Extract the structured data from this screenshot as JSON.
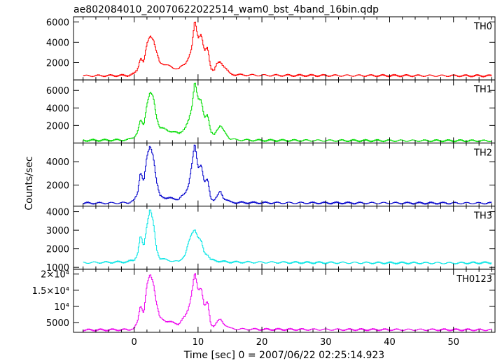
{
  "chart_data": {
    "type": "line",
    "title": "ae802084010_20070622022514_wam0_bst_4band_16bin.qdp",
    "xlabel": "Time [sec] 0 = 2007/06/22 02:25:14.923",
    "ylabel": "Counts/sec",
    "xlim": [
      -9.5,
      56.5
    ],
    "x_ticks": [
      0,
      10,
      20,
      30,
      40,
      50
    ],
    "grid": false,
    "legend": "panel labels top-right",
    "panels": [
      {
        "name": "TH0",
        "color": "#ff0000",
        "ylim": [
          300,
          6500
        ],
        "y_ticks": [
          2000,
          4000,
          6000
        ],
        "y_tick_labels": [
          "2000",
          "4000",
          "6000"
        ],
        "points": [
          [
            -8,
            700
          ],
          [
            -4,
            720
          ],
          [
            -1,
            740
          ],
          [
            0,
            900
          ],
          [
            0.5,
            1300
          ],
          [
            1,
            2500
          ],
          [
            1.5,
            2000
          ],
          [
            2,
            3800
          ],
          [
            2.5,
            4700
          ],
          [
            3,
            4300
          ],
          [
            3.5,
            3000
          ],
          [
            4,
            2000
          ],
          [
            5,
            1800
          ],
          [
            6,
            1500
          ],
          [
            7,
            1400
          ],
          [
            8,
            1900
          ],
          [
            8.5,
            2500
          ],
          [
            9,
            3300
          ],
          [
            9.5,
            6200
          ],
          [
            10,
            4500
          ],
          [
            10.5,
            4800
          ],
          [
            11,
            3100
          ],
          [
            11.5,
            3500
          ],
          [
            12,
            1500
          ],
          [
            12.5,
            1200
          ],
          [
            13,
            1900
          ],
          [
            13.5,
            2100
          ],
          [
            14,
            1700
          ],
          [
            15,
            900
          ],
          [
            16,
            800
          ],
          [
            20,
            750
          ],
          [
            30,
            730
          ],
          [
            40,
            720
          ],
          [
            50,
            710
          ],
          [
            56,
            700
          ]
        ]
      },
      {
        "name": "TH1",
        "color": "#00dd00",
        "ylim": [
          0,
          7200
        ],
        "y_ticks": [
          2000,
          4000,
          6000
        ],
        "y_tick_labels": [
          "2000",
          "4000",
          "6000"
        ],
        "points": [
          [
            -8,
            300
          ],
          [
            -4,
            320
          ],
          [
            -1,
            350
          ],
          [
            0,
            700
          ],
          [
            0.5,
            1200
          ],
          [
            1,
            2600
          ],
          [
            1.5,
            2000
          ],
          [
            2,
            4500
          ],
          [
            2.5,
            5800
          ],
          [
            3,
            5200
          ],
          [
            3.5,
            3000
          ],
          [
            4,
            1800
          ],
          [
            5,
            1500
          ],
          [
            6,
            1300
          ],
          [
            7,
            1100
          ],
          [
            8,
            1700
          ],
          [
            8.5,
            2500
          ],
          [
            9,
            3900
          ],
          [
            9.5,
            7200
          ],
          [
            10,
            5000
          ],
          [
            10.5,
            4800
          ],
          [
            11,
            3000
          ],
          [
            11.5,
            3300
          ],
          [
            12,
            1200
          ],
          [
            12.5,
            900
          ],
          [
            13,
            1600
          ],
          [
            13.5,
            2000
          ],
          [
            14,
            1400
          ],
          [
            15,
            500
          ],
          [
            16,
            350
          ],
          [
            20,
            300
          ],
          [
            30,
            280
          ],
          [
            40,
            270
          ],
          [
            50,
            260
          ],
          [
            56,
            250
          ]
        ]
      },
      {
        "name": "TH2",
        "color": "#0000cc",
        "ylim": [
          200,
          5600
        ],
        "y_ticks": [
          2000,
          4000
        ],
        "y_tick_labels": [
          "2000",
          "4000"
        ],
        "points": [
          [
            -8,
            450
          ],
          [
            -4,
            460
          ],
          [
            -1,
            480
          ],
          [
            0,
            700
          ],
          [
            0.5,
            1200
          ],
          [
            1,
            3200
          ],
          [
            1.5,
            2300
          ],
          [
            2,
            4400
          ],
          [
            2.5,
            5400
          ],
          [
            3,
            4500
          ],
          [
            3.5,
            2300
          ],
          [
            4,
            1100
          ],
          [
            5,
            900
          ],
          [
            6,
            850
          ],
          [
            7,
            800
          ],
          [
            8,
            1300
          ],
          [
            8.5,
            2000
          ],
          [
            9,
            3600
          ],
          [
            9.5,
            5600
          ],
          [
            10,
            3500
          ],
          [
            10.5,
            3800
          ],
          [
            11,
            2200
          ],
          [
            11.5,
            2500
          ],
          [
            12,
            900
          ],
          [
            12.5,
            700
          ],
          [
            13,
            1000
          ],
          [
            13.5,
            1500
          ],
          [
            14,
            900
          ],
          [
            15,
            550
          ],
          [
            16,
            500
          ],
          [
            20,
            480
          ],
          [
            30,
            470
          ],
          [
            40,
            460
          ],
          [
            50,
            455
          ],
          [
            56,
            450
          ]
        ]
      },
      {
        "name": "TH3",
        "color": "#00e5e5",
        "ylim": [
          900,
          4300
        ],
        "y_ticks": [
          1000,
          2000,
          3000,
          4000
        ],
        "y_tick_labels": [
          "1000",
          "2000",
          "3000",
          "4000"
        ],
        "points": [
          [
            -8,
            1250
          ],
          [
            -4,
            1270
          ],
          [
            -1,
            1300
          ],
          [
            0,
            1400
          ],
          [
            0.5,
            1700
          ],
          [
            1,
            2700
          ],
          [
            1.5,
            2100
          ],
          [
            2,
            3300
          ],
          [
            2.5,
            4200
          ],
          [
            3,
            3400
          ],
          [
            3.5,
            2000
          ],
          [
            4,
            1500
          ],
          [
            5,
            1400
          ],
          [
            6,
            1350
          ],
          [
            7,
            1300
          ],
          [
            8,
            1700
          ],
          [
            8.5,
            2300
          ],
          [
            9,
            2800
          ],
          [
            9.5,
            3100
          ],
          [
            10,
            2600
          ],
          [
            10.5,
            2400
          ],
          [
            11,
            1800
          ],
          [
            11.5,
            1700
          ],
          [
            12,
            1400
          ],
          [
            13,
            1350
          ],
          [
            14,
            1300
          ],
          [
            16,
            1280
          ],
          [
            20,
            1270
          ],
          [
            30,
            1250
          ],
          [
            40,
            1240
          ],
          [
            50,
            1230
          ],
          [
            56,
            1250
          ]
        ]
      },
      {
        "name": "TH0123",
        "color": "#ee00ee",
        "ylim": [
          2000,
          21500
        ],
        "y_ticks": [
          5000,
          10000,
          15000,
          20000
        ],
        "y_tick_labels": [
          "5000",
          "10⁴",
          "1.5×10⁴",
          "2×10⁴"
        ],
        "points": [
          [
            -8,
            2700
          ],
          [
            -4,
            2750
          ],
          [
            -1,
            2800
          ],
          [
            0,
            3200
          ],
          [
            0.5,
            5000
          ],
          [
            1,
            10500
          ],
          [
            1.5,
            8000
          ],
          [
            2,
            16500
          ],
          [
            2.5,
            20000
          ],
          [
            3,
            17500
          ],
          [
            3.5,
            11000
          ],
          [
            4,
            6500
          ],
          [
            5,
            5500
          ],
          [
            6,
            5000
          ],
          [
            7,
            4600
          ],
          [
            8,
            7000
          ],
          [
            8.5,
            9500
          ],
          [
            9,
            14000
          ],
          [
            9.5,
            20500
          ],
          [
            10,
            15000
          ],
          [
            10.5,
            16000
          ],
          [
            11,
            10000
          ],
          [
            11.5,
            11500
          ],
          [
            12,
            4500
          ],
          [
            12.5,
            4000
          ],
          [
            13,
            5200
          ],
          [
            13.5,
            6000
          ],
          [
            14,
            4800
          ],
          [
            15,
            3200
          ],
          [
            16,
            3000
          ],
          [
            20,
            2900
          ],
          [
            30,
            2850
          ],
          [
            40,
            2800
          ],
          [
            50,
            2780
          ],
          [
            56,
            2750
          ]
        ]
      }
    ]
  }
}
